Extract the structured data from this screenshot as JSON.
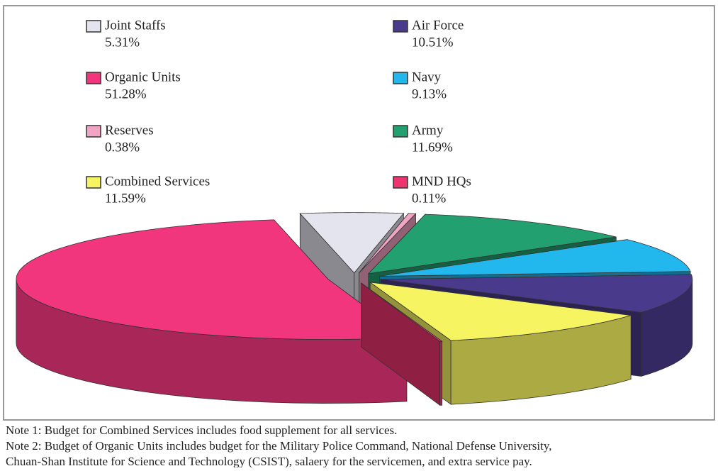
{
  "chart_data": {
    "type": "pie",
    "series": [
      {
        "name": "Joint Staffs",
        "color": "#e4e4ee",
        "values": [
          5.31
        ],
        "value_labels": [
          "5.31%"
        ]
      },
      {
        "name": "Reserves",
        "color": "#f2a4c4",
        "values": [
          0.38
        ],
        "value_labels": [
          "0.38%"
        ]
      },
      {
        "name": "Army",
        "color": "#22a070",
        "values": [
          11.69
        ],
        "value_labels": [
          "11.69%"
        ]
      },
      {
        "name": "Navy",
        "color": "#22b8ee",
        "values": [
          9.13
        ],
        "value_labels": [
          "9.13%"
        ]
      },
      {
        "name": "Air Force",
        "color": "#4a3a8c",
        "values": [
          10.51
        ],
        "value_labels": [
          "10.51%"
        ]
      },
      {
        "name": "Combined Services",
        "color": "#f6f460",
        "values": [
          11.59
        ],
        "value_labels": [
          "11.59%"
        ]
      },
      {
        "name": "MND HQs",
        "color": "#ee3470",
        "values": [
          0.11
        ],
        "value_labels": [
          "0.11%"
        ]
      },
      {
        "name": "Organic Units",
        "color": "#f2367e",
        "values": [
          51.28
        ],
        "value_labels": [
          "51.28%"
        ]
      }
    ],
    "legend_order": [
      0,
      4,
      7,
      3,
      1,
      2,
      5,
      6
    ],
    "notes": [
      "Note 1: Budget for Combined Services includes food supplement for all services.",
      " Note 2: Budget of Organic Units includes budget for the Military Police Command, National Defense University,",
      "Chuan-Shan Institute for Science and Technology (CSIST), salaery for the servicemen, and extra service pay."
    ]
  }
}
